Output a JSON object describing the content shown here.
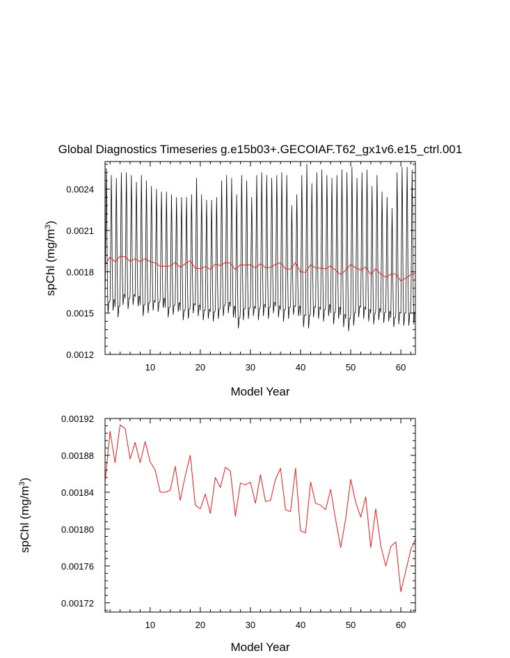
{
  "title": "Global Diagnostics Timeseries g.e15b03+.GECOIAF.T62_gx1v6.e15_ctrl.001",
  "colors": {
    "monthly": "#000000",
    "annual": "#e8191b",
    "frame": "#000000"
  },
  "chart_data": [
    {
      "type": "line",
      "title": "Global Diagnostics Timeseries g.e15b03+.GECOIAF.T62_gx1v6.e15_ctrl.001",
      "xlabel": "Model Year",
      "ylabel": "spChl (mg/m",
      "ylabel_sup": "3",
      "ylabel_close": ")",
      "xlim": [
        1,
        62.9
      ],
      "ylim": [
        0.0012,
        0.0026
      ],
      "xticks": [
        10,
        20,
        30,
        40,
        50,
        60
      ],
      "xtick_labels": [
        "10",
        "20",
        "30",
        "40",
        "50",
        "60"
      ],
      "yticks": [
        0.0012,
        0.0015,
        0.0018,
        0.0021,
        0.0024
      ],
      "ytick_labels": [
        "0.0012",
        "0.0015",
        "0.0018",
        "0.0021",
        "0.0024"
      ],
      "grid": false,
      "series": [
        {
          "kind": "monthly",
          "color": "#000000",
          "stroke_width": 0.8,
          "seasonal_cycle": [
            0.0016,
            0.0019,
            0.00225,
            0.00255,
            0.0023,
            0.0019,
            0.00168,
            0.00152,
            0.00155,
            0.0016,
            0.0016,
            0.0016
          ],
          "annual_peaks": [
            0.00255,
            0.0025,
            0.00248,
            0.00252,
            0.00252,
            0.0025,
            0.00245,
            0.0025,
            0.00246,
            0.00242,
            0.0024,
            0.00238,
            0.00238,
            0.00236,
            0.00234,
            0.00234,
            0.00234,
            0.00236,
            0.00248,
            0.00236,
            0.00232,
            0.00232,
            0.00234,
            0.00246,
            0.0025,
            0.00248,
            0.00236,
            0.0025,
            0.00246,
            0.00234,
            0.0025,
            0.00252,
            0.0025,
            0.00248,
            0.0025,
            0.00252,
            0.0025,
            0.00228,
            0.00236,
            0.0025,
            0.00258,
            0.00244,
            0.00252,
            0.00254,
            0.0025,
            0.00248,
            0.0025,
            0.00254,
            0.00252,
            0.00256,
            0.00248,
            0.00252,
            0.00254,
            0.00242,
            0.0025,
            0.00238,
            0.00234,
            0.00226,
            0.00252,
            0.00256,
            0.00256,
            0.00254
          ],
          "annual_troughs": [
            0.0015,
            0.00152,
            0.00147,
            0.00156,
            0.00153,
            0.00156,
            0.00155,
            0.00148,
            0.0015,
            0.00152,
            0.00151,
            0.00154,
            0.00147,
            0.00149,
            0.00151,
            0.00145,
            0.00146,
            0.0015,
            0.00148,
            0.00145,
            0.00146,
            0.00144,
            0.00146,
            0.00148,
            0.0015,
            0.00147,
            0.00139,
            0.00145,
            0.00146,
            0.00148,
            0.00145,
            0.00148,
            0.00146,
            0.0015,
            0.00147,
            0.00144,
            0.00146,
            0.00149,
            0.00148,
            0.0014,
            0.00139,
            0.00147,
            0.00146,
            0.00144,
            0.00148,
            0.00142,
            0.00146,
            0.0014,
            0.00137,
            0.00141,
            0.00147,
            0.00146,
            0.00144,
            0.00142,
            0.00145,
            0.00143,
            0.00144,
            0.0014,
            0.00142,
            0.00141,
            0.00141,
            0.00142
          ]
        },
        {
          "kind": "annual",
          "color": "#e8191b",
          "stroke_width": 1.0,
          "x": [
            1,
            2,
            3,
            4,
            5,
            6,
            7,
            8,
            9,
            10,
            11,
            12,
            13,
            14,
            15,
            16,
            17,
            18,
            19,
            20,
            21,
            22,
            23,
            24,
            25,
            26,
            27,
            28,
            29,
            30,
            31,
            32,
            33,
            34,
            35,
            36,
            37,
            38,
            39,
            40,
            41,
            42,
            43,
            44,
            45,
            46,
            47,
            48,
            49,
            50,
            51,
            52,
            53,
            54,
            55,
            56,
            57,
            58,
            59,
            60,
            61,
            62,
            63
          ],
          "y": [
            0.001852,
            0.001906,
            0.001872,
            0.001913,
            0.001909,
            0.001876,
            0.001894,
            0.001872,
            0.001895,
            0.001873,
            0.001864,
            0.00184,
            0.00184,
            0.001842,
            0.001868,
            0.001831,
            0.001858,
            0.00188,
            0.001826,
            0.001822,
            0.001838,
            0.001817,
            0.001856,
            0.001845,
            0.001867,
            0.001863,
            0.001814,
            0.00185,
            0.001848,
            0.001851,
            0.001828,
            0.001859,
            0.00183,
            0.001831,
            0.001854,
            0.001866,
            0.001821,
            0.001819,
            0.001866,
            0.001798,
            0.001796,
            0.001851,
            0.001828,
            0.001826,
            0.001821,
            0.001843,
            0.00181,
            0.00178,
            0.001811,
            0.001854,
            0.001829,
            0.001813,
            0.001835,
            0.00178,
            0.001822,
            0.001782,
            0.00176,
            0.001781,
            0.001786,
            0.001732,
            0.001755,
            0.001778,
            0.00179
          ]
        }
      ]
    },
    {
      "type": "line",
      "title": "",
      "xlabel": "Model Year",
      "ylabel": "spChl (mg/m",
      "ylabel_sup": "3",
      "ylabel_close": ")",
      "xlim": [
        1,
        62.9
      ],
      "ylim": [
        0.00171,
        0.00192
      ],
      "xticks": [
        10,
        20,
        30,
        40,
        50,
        60
      ],
      "xtick_labels": [
        "10",
        "20",
        "30",
        "40",
        "50",
        "60"
      ],
      "yticks": [
        0.00172,
        0.00176,
        0.0018,
        0.00184,
        0.00188,
        0.00192
      ],
      "ytick_labels": [
        "0.00172",
        "0.00176",
        "0.00180",
        "0.00184",
        "0.00188",
        "0.00192"
      ],
      "grid": false,
      "series": [
        {
          "kind": "annual",
          "color": "#e8191b",
          "stroke_width": 1.0,
          "x": [
            1,
            2,
            3,
            4,
            5,
            6,
            7,
            8,
            9,
            10,
            11,
            12,
            13,
            14,
            15,
            16,
            17,
            18,
            19,
            20,
            21,
            22,
            23,
            24,
            25,
            26,
            27,
            28,
            29,
            30,
            31,
            32,
            33,
            34,
            35,
            36,
            37,
            38,
            39,
            40,
            41,
            42,
            43,
            44,
            45,
            46,
            47,
            48,
            49,
            50,
            51,
            52,
            53,
            54,
            55,
            56,
            57,
            58,
            59,
            60,
            61,
            62,
            63
          ],
          "y": [
            0.001852,
            0.001906,
            0.001872,
            0.001913,
            0.001909,
            0.001876,
            0.001894,
            0.001872,
            0.001895,
            0.001873,
            0.001864,
            0.00184,
            0.00184,
            0.001842,
            0.001868,
            0.001831,
            0.001858,
            0.00188,
            0.001826,
            0.001822,
            0.001838,
            0.001817,
            0.001856,
            0.001845,
            0.001867,
            0.001863,
            0.001814,
            0.00185,
            0.001848,
            0.001851,
            0.001828,
            0.001859,
            0.00183,
            0.001831,
            0.001854,
            0.001866,
            0.001821,
            0.001819,
            0.001866,
            0.001798,
            0.001796,
            0.001851,
            0.001828,
            0.001826,
            0.001821,
            0.001843,
            0.00181,
            0.00178,
            0.001811,
            0.001854,
            0.001829,
            0.001813,
            0.001835,
            0.00178,
            0.001822,
            0.001782,
            0.00176,
            0.001781,
            0.001786,
            0.001732,
            0.001755,
            0.001778,
            0.00179
          ]
        }
      ]
    }
  ]
}
